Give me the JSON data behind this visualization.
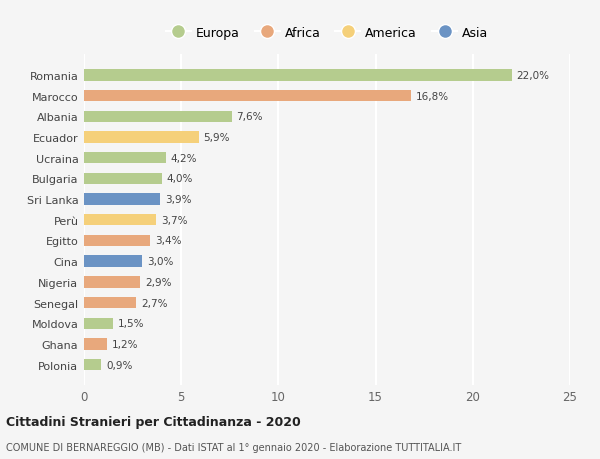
{
  "categories": [
    "Romania",
    "Marocco",
    "Albania",
    "Ecuador",
    "Ucraina",
    "Bulgaria",
    "Sri Lanka",
    "Perù",
    "Egitto",
    "Cina",
    "Nigeria",
    "Senegal",
    "Moldova",
    "Ghana",
    "Polonia"
  ],
  "values": [
    22.0,
    16.8,
    7.6,
    5.9,
    4.2,
    4.0,
    3.9,
    3.7,
    3.4,
    3.0,
    2.9,
    2.7,
    1.5,
    1.2,
    0.9
  ],
  "continents": [
    "Europa",
    "Africa",
    "Europa",
    "America",
    "Europa",
    "Europa",
    "Asia",
    "America",
    "Africa",
    "Asia",
    "Africa",
    "Africa",
    "Europa",
    "Africa",
    "Europa"
  ],
  "continent_colors": {
    "Europa": "#b5cc8e",
    "Africa": "#e8a87c",
    "America": "#f5d07a",
    "Asia": "#6b93c4"
  },
  "legend_order": [
    "Europa",
    "Africa",
    "America",
    "Asia"
  ],
  "xlim": [
    0,
    25
  ],
  "xticks": [
    0,
    5,
    10,
    15,
    20,
    25
  ],
  "title": "Cittadini Stranieri per Cittadinanza - 2020",
  "subtitle": "COMUNE DI BERNAREGGIO (MB) - Dati ISTAT al 1° gennaio 2020 - Elaborazione TUTTITALIA.IT",
  "bg_color": "#f5f5f5",
  "grid_color": "#ffffff",
  "bar_height": 0.55
}
